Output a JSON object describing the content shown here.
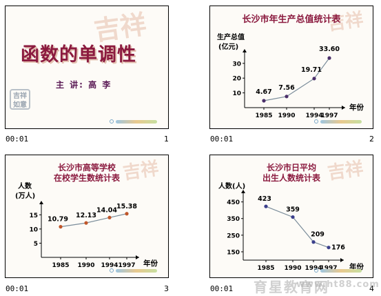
{
  "slides": [
    {
      "time": "00:01",
      "number": "1",
      "title": "函数的单调性",
      "author": "主 讲: 高 李",
      "deco_text": "吉祥",
      "stamp_text": "吉祥如意"
    },
    {
      "time": "00:01",
      "number": "2",
      "title": "长沙市年生产总值统计表",
      "ylabel_line1": "生产总值",
      "ylabel_line2": "(亿元)",
      "xlabel": "年份",
      "deco_text": "吉祥",
      "chart_data": {
        "type": "line",
        "categories": [
          "1985",
          "1990",
          "1994",
          "1997"
        ],
        "values": [
          4.67,
          7.56,
          19.71,
          33.6
        ],
        "value_labels": [
          "4.67",
          "7.56",
          "19.71",
          "33.60"
        ],
        "yticks": [
          10,
          20,
          30
        ],
        "ylim": [
          0,
          36
        ],
        "xlabel": "年份",
        "ylabel": "生产总值(亿元)",
        "title": "长沙市年生产总值统计表",
        "line_color": "#7a8c9a",
        "marker_color": "#4b2f6a"
      }
    },
    {
      "time": "00:01",
      "number": "3",
      "title_line1": "长沙市高等学校",
      "title_line2": "在校学生数统计表",
      "ylabel_line1": "人数",
      "ylabel_line2": "(万人)",
      "xlabel": "年份",
      "deco_text": "吉祥",
      "chart_data": {
        "type": "line",
        "categories": [
          "1985",
          "1990",
          "1994",
          "1997"
        ],
        "values": [
          10.79,
          12.13,
          14.04,
          15.38
        ],
        "value_labels": [
          "10.79",
          "12.13",
          "14.04",
          "15.38"
        ],
        "yticks": [
          5,
          10,
          15
        ],
        "ylim": [
          0,
          18
        ],
        "xlabel": "年份",
        "ylabel": "人数(万人)",
        "title": "长沙市高等学校在校学生数统计表",
        "line_color": "#7a8c9a",
        "marker_color": "#c0562a"
      }
    },
    {
      "time": "00:01",
      "number": "4",
      "title_line1": "长沙市日平均",
      "title_line2": "出生人数统计表",
      "ylabel_line1": "人数(人)",
      "xlabel": "年份",
      "deco_text": "吉祥",
      "chart_data": {
        "type": "line",
        "categories": [
          "1985",
          "1990",
          "1994",
          "1997"
        ],
        "values": [
          423,
          359,
          209,
          176
        ],
        "value_labels": [
          "423",
          "359",
          "209",
          "176"
        ],
        "yticks": [
          150,
          250,
          350,
          450
        ],
        "ylim": [
          100,
          490
        ],
        "xlabel": "年份",
        "ylabel": "人数(人)",
        "title": "长沙市日平均出生人数统计表",
        "line_color": "#7a8c9a",
        "marker_color": "#3b3f8c"
      }
    }
  ],
  "watermark": {
    "text": "育星教育网",
    "url": "www.ht88.com"
  },
  "colors": {
    "title": "#8b1a3f",
    "author": "#5a1a55"
  }
}
